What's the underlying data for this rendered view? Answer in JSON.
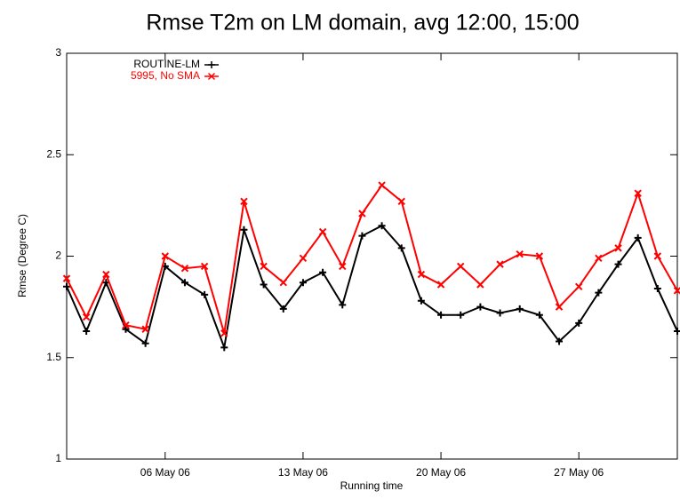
{
  "chart_data": {
    "type": "line",
    "title": "Rmse T2m on LM domain, avg 12:00, 15:00",
    "x_label": "Running time",
    "y_label": "Rmse (Degree C)",
    "x": [
      "2006-05-01",
      "2006-05-02",
      "2006-05-03",
      "2006-05-04",
      "2006-05-05",
      "2006-05-06",
      "2006-05-07",
      "2006-05-08",
      "2006-05-09",
      "2006-05-10",
      "2006-05-11",
      "2006-05-12",
      "2006-05-13",
      "2006-05-14",
      "2006-05-15",
      "2006-05-16",
      "2006-05-17",
      "2006-05-18",
      "2006-05-19",
      "2006-05-20",
      "2006-05-21",
      "2006-05-22",
      "2006-05-23",
      "2006-05-24",
      "2006-05-25",
      "2006-05-26",
      "2006-05-27",
      "2006-05-28",
      "2006-05-29",
      "2006-05-30",
      "2006-05-31",
      "2006-06-01"
    ],
    "series": [
      {
        "name": "ROUTINE-LM",
        "color": "#000000",
        "marker": "plus",
        "values": [
          1.85,
          1.63,
          1.87,
          1.64,
          1.57,
          1.95,
          1.87,
          1.81,
          1.55,
          2.13,
          1.86,
          1.74,
          1.87,
          1.92,
          1.76,
          2.1,
          2.15,
          2.04,
          1.78,
          1.71,
          1.71,
          1.75,
          1.72,
          1.74,
          1.71,
          1.58,
          1.67,
          1.82,
          1.96,
          2.09,
          1.84,
          1.63
        ]
      },
      {
        "name": "5995, No SMA",
        "color": "#ff0000",
        "marker": "x",
        "values": [
          1.89,
          1.7,
          1.91,
          1.66,
          1.64,
          2.0,
          1.94,
          1.95,
          1.62,
          2.27,
          1.95,
          1.87,
          1.99,
          2.12,
          1.95,
          2.21,
          2.35,
          2.27,
          1.91,
          1.86,
          1.95,
          1.86,
          1.96,
          2.01,
          2.0,
          1.75,
          1.85,
          1.99,
          2.04,
          2.31,
          2.0,
          1.83
        ]
      }
    ],
    "xlim": [
      "2006-05-01",
      "2006-06-01"
    ],
    "xticks": [
      {
        "value": "2006-05-06",
        "label": "06 May 06"
      },
      {
        "value": "2006-05-13",
        "label": "13 May 06"
      },
      {
        "value": "2006-05-20",
        "label": "20 May 06"
      },
      {
        "value": "2006-05-27",
        "label": "27 May 06"
      }
    ],
    "ylim": [
      1,
      3
    ],
    "yticks": [
      1,
      1.5,
      2,
      2.5,
      3
    ],
    "grid": false,
    "legend": "upper left"
  }
}
